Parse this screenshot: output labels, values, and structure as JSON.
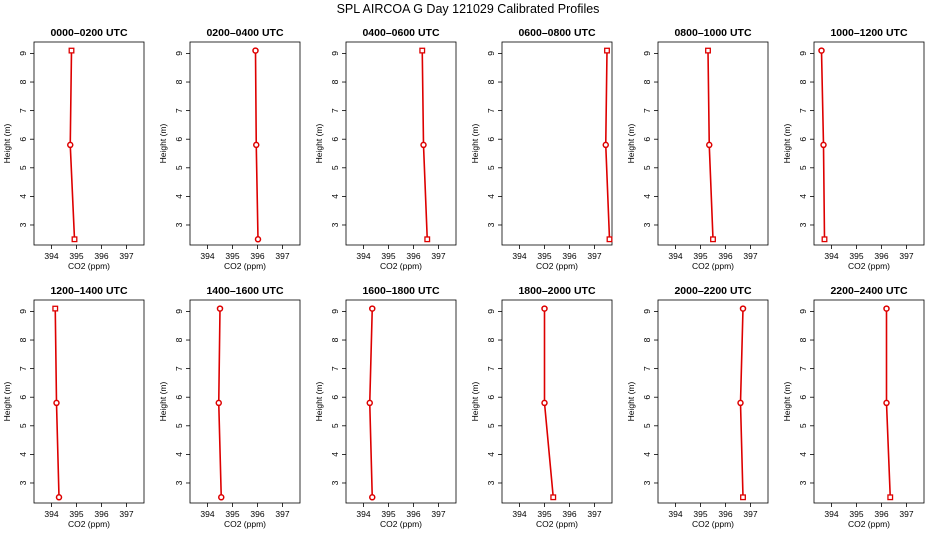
{
  "figure": {
    "title": "SPL AIRCOA G  Day 121029  Calibrated Profiles"
  },
  "chart_data": [
    {
      "type": "line",
      "title": "0000–0200 UTC",
      "xlabel": "CO2 (ppm)",
      "ylabel": "Height (m)",
      "xlim": [
        393.3,
        397.7
      ],
      "ylim": [
        2.3,
        9.4
      ],
      "xticks": [
        394,
        395,
        396,
        397
      ],
      "yticks": [
        3,
        4,
        5,
        6,
        7,
        8,
        9
      ],
      "heights": [
        2.5,
        5.8,
        9.1
      ],
      "co2": [
        394.92,
        394.75,
        394.8
      ],
      "markers": [
        "square",
        "circle",
        "square"
      ],
      "color": "#dd0000"
    },
    {
      "type": "line",
      "title": "0200–0400 UTC",
      "xlabel": "CO2 (ppm)",
      "ylabel": "Height (m)",
      "xlim": [
        393.3,
        397.7
      ],
      "ylim": [
        2.3,
        9.4
      ],
      "xticks": [
        394,
        395,
        396,
        397
      ],
      "yticks": [
        3,
        4,
        5,
        6,
        7,
        8,
        9
      ],
      "heights": [
        2.5,
        5.8,
        9.1
      ],
      "co2": [
        396.02,
        395.95,
        395.92
      ],
      "markers": [
        "circle",
        "circle",
        "circle"
      ],
      "color": "#dd0000"
    },
    {
      "type": "line",
      "title": "0400–0600 UTC",
      "xlabel": "CO2 (ppm)",
      "ylabel": "Height (m)",
      "xlim": [
        393.3,
        397.7
      ],
      "ylim": [
        2.3,
        9.4
      ],
      "xticks": [
        394,
        395,
        396,
        397
      ],
      "yticks": [
        3,
        4,
        5,
        6,
        7,
        8,
        9
      ],
      "heights": [
        2.5,
        5.8,
        9.1
      ],
      "co2": [
        396.55,
        396.4,
        396.35
      ],
      "markers": [
        "square",
        "circle",
        "square"
      ],
      "color": "#dd0000"
    },
    {
      "type": "line",
      "title": "0600–0800 UTC",
      "xlabel": "CO2 (ppm)",
      "ylabel": "Height (m)",
      "xlim": [
        393.3,
        397.7
      ],
      "ylim": [
        2.3,
        9.4
      ],
      "xticks": [
        394,
        395,
        396,
        397
      ],
      "yticks": [
        3,
        4,
        5,
        6,
        7,
        8,
        9
      ],
      "heights": [
        2.5,
        5.8,
        9.1
      ],
      "co2": [
        397.6,
        397.45,
        397.5
      ],
      "markers": [
        "square",
        "circle",
        "square"
      ],
      "color": "#dd0000"
    },
    {
      "type": "line",
      "title": "0800–1000 UTC",
      "xlabel": "CO2 (ppm)",
      "ylabel": "Height (m)",
      "xlim": [
        393.3,
        397.7
      ],
      "ylim": [
        2.3,
        9.4
      ],
      "xticks": [
        394,
        395,
        396,
        397
      ],
      "yticks": [
        3,
        4,
        5,
        6,
        7,
        8,
        9
      ],
      "heights": [
        2.5,
        5.8,
        9.1
      ],
      "co2": [
        395.5,
        395.35,
        395.3
      ],
      "markers": [
        "square",
        "circle",
        "square"
      ],
      "color": "#dd0000"
    },
    {
      "type": "line",
      "title": "1000–1200 UTC",
      "xlabel": "CO2 (ppm)",
      "ylabel": "Height (m)",
      "xlim": [
        393.3,
        397.7
      ],
      "ylim": [
        2.3,
        9.4
      ],
      "xticks": [
        394,
        395,
        396,
        397
      ],
      "yticks": [
        3,
        4,
        5,
        6,
        7,
        8,
        9
      ],
      "heights": [
        2.5,
        5.8,
        9.1
      ],
      "co2": [
        393.72,
        393.68,
        393.6
      ],
      "markers": [
        "square",
        "circle",
        "circle"
      ],
      "color": "#dd0000"
    },
    {
      "type": "line",
      "title": "1200–1400 UTC",
      "xlabel": "CO2 (ppm)",
      "ylabel": "Height (m)",
      "xlim": [
        393.3,
        397.7
      ],
      "ylim": [
        2.3,
        9.4
      ],
      "xticks": [
        394,
        395,
        396,
        397
      ],
      "yticks": [
        3,
        4,
        5,
        6,
        7,
        8,
        9
      ],
      "heights": [
        2.5,
        5.8,
        9.1
      ],
      "co2": [
        394.3,
        394.2,
        394.15
      ],
      "markers": [
        "circle",
        "circle",
        "square"
      ],
      "color": "#dd0000"
    },
    {
      "type": "line",
      "title": "1400–1600 UTC",
      "xlabel": "CO2 (ppm)",
      "ylabel": "Height (m)",
      "xlim": [
        393.3,
        397.7
      ],
      "ylim": [
        2.3,
        9.4
      ],
      "xticks": [
        394,
        395,
        396,
        397
      ],
      "yticks": [
        3,
        4,
        5,
        6,
        7,
        8,
        9
      ],
      "heights": [
        2.5,
        5.8,
        9.1
      ],
      "co2": [
        394.55,
        394.45,
        394.5
      ],
      "markers": [
        "circle",
        "circle",
        "circle"
      ],
      "color": "#dd0000"
    },
    {
      "type": "line",
      "title": "1600–1800 UTC",
      "xlabel": "CO2 (ppm)",
      "ylabel": "Height (m)",
      "xlim": [
        393.3,
        397.7
      ],
      "ylim": [
        2.3,
        9.4
      ],
      "xticks": [
        394,
        395,
        396,
        397
      ],
      "yticks": [
        3,
        4,
        5,
        6,
        7,
        8,
        9
      ],
      "heights": [
        2.5,
        5.8,
        9.1
      ],
      "co2": [
        394.35,
        394.25,
        394.35
      ],
      "markers": [
        "circle",
        "circle",
        "circle"
      ],
      "color": "#dd0000"
    },
    {
      "type": "line",
      "title": "1800–2000 UTC",
      "xlabel": "CO2 (ppm)",
      "ylabel": "Height (m)",
      "xlim": [
        393.3,
        397.7
      ],
      "ylim": [
        2.3,
        9.4
      ],
      "xticks": [
        394,
        395,
        396,
        397
      ],
      "yticks": [
        3,
        4,
        5,
        6,
        7,
        8,
        9
      ],
      "heights": [
        2.5,
        5.8,
        9.1
      ],
      "co2": [
        395.35,
        395.0,
        395.0
      ],
      "markers": [
        "square",
        "circle",
        "circle"
      ],
      "color": "#dd0000"
    },
    {
      "type": "line",
      "title": "2000–2200 UTC",
      "xlabel": "CO2 (ppm)",
      "ylabel": "Height (m)",
      "xlim": [
        393.3,
        397.7
      ],
      "ylim": [
        2.3,
        9.4
      ],
      "xticks": [
        394,
        395,
        396,
        397
      ],
      "yticks": [
        3,
        4,
        5,
        6,
        7,
        8,
        9
      ],
      "heights": [
        2.5,
        5.8,
        9.1
      ],
      "co2": [
        396.7,
        396.6,
        396.7
      ],
      "markers": [
        "square",
        "circle",
        "circle"
      ],
      "color": "#dd0000"
    },
    {
      "type": "line",
      "title": "2200–2400 UTC",
      "xlabel": "CO2 (ppm)",
      "ylabel": "Height (m)",
      "xlim": [
        393.3,
        397.7
      ],
      "ylim": [
        2.3,
        9.4
      ],
      "xticks": [
        394,
        395,
        396,
        397
      ],
      "yticks": [
        3,
        4,
        5,
        6,
        7,
        8,
        9
      ],
      "heights": [
        2.5,
        5.8,
        9.1
      ],
      "co2": [
        396.35,
        396.2,
        396.2
      ],
      "markers": [
        "square",
        "circle",
        "circle"
      ],
      "color": "#dd0000"
    }
  ]
}
